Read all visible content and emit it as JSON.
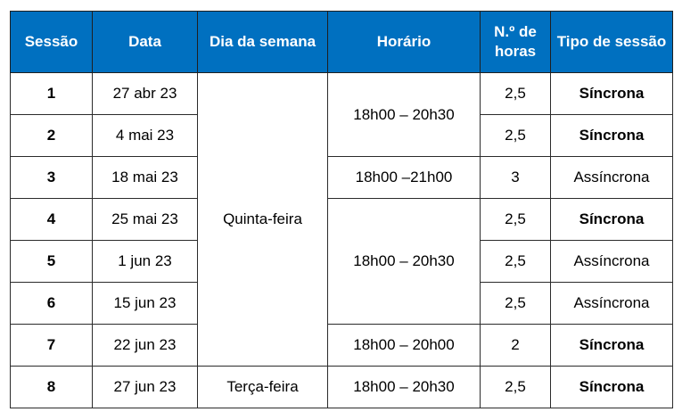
{
  "table": {
    "headers": {
      "session": "Sessão",
      "date": "Data",
      "weekday": "Dia da semana",
      "time": "Horário",
      "hours": "N.º de horas",
      "type": "Tipo de sessão"
    },
    "rows": [
      {
        "session": "1",
        "date": "27 abr 23",
        "hours": "2,5",
        "type": "Síncrona"
      },
      {
        "session": "2",
        "date": "4 mai 23",
        "hours": "2,5",
        "type": "Síncrona"
      },
      {
        "session": "3",
        "date": "18 mai 23",
        "hours": "3",
        "type": "Assíncrona"
      },
      {
        "session": "4",
        "date": "25 mai 23",
        "hours": "2,5",
        "type": "Síncrona"
      },
      {
        "session": "5",
        "date": "1 jun 23",
        "hours": "2,5",
        "type": "Assíncrona"
      },
      {
        "session": "6",
        "date": "15 jun 23",
        "hours": "2,5",
        "type": "Assíncrona"
      },
      {
        "session": "7",
        "date": "22 jun 23",
        "hours": "2",
        "type": "Síncrona"
      },
      {
        "session": "8",
        "date": "27 jun 23",
        "hours": "2,5",
        "type": "Síncrona"
      }
    ],
    "weekday_groups": [
      "Quinta-feira",
      "Terça-feira"
    ],
    "time_groups": [
      "18h00 – 20h30",
      "18h00 –21h00",
      "18h00 – 20h30",
      "18h00 – 20h00",
      "18h00 – 20h30"
    ],
    "header_color": "#0070c0"
  }
}
